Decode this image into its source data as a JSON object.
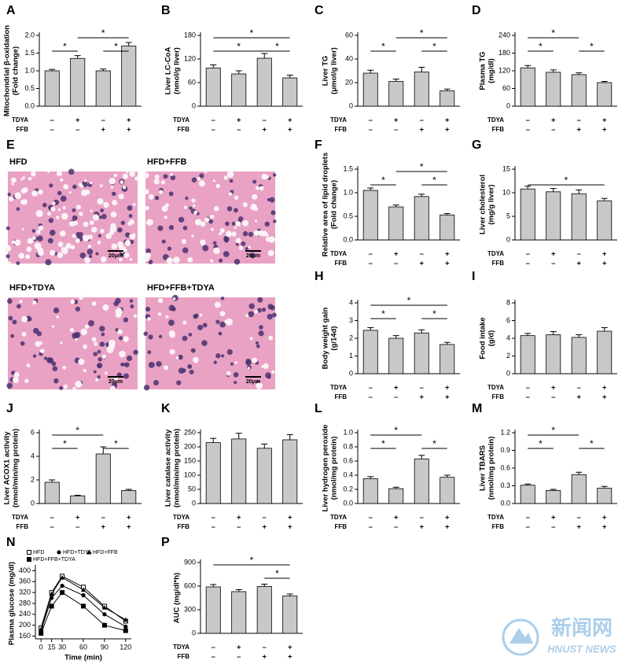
{
  "chart_data": [
    {
      "type": "bar",
      "letter": "A",
      "ylabel": [
        "Mitochondrial β-oxidation",
        "(Fold change)"
      ],
      "categories": [
        null,
        null,
        null,
        null
      ],
      "values": [
        1.0,
        1.35,
        1.0,
        1.7
      ],
      "errors": [
        0.04,
        0.08,
        0.05,
        0.1
      ],
      "color": "#c8c8c8",
      "ylim": [
        0,
        2
      ],
      "yticks": [
        {
          "value": 0,
          "label": "0.0"
        },
        0.5,
        {
          "value": 1,
          "label": "1.0"
        },
        1.5,
        {
          "value": 2,
          "label": "2.0"
        }
      ],
      "rows": [
        {
          "name": "TDYA",
          "signs": [
            "–",
            "+",
            "–",
            "+"
          ]
        },
        {
          "name": "FFB",
          "signs": [
            "–",
            "–",
            "+",
            "+"
          ]
        }
      ],
      "significance": [
        {
          "from": 0,
          "to": 1,
          "label": "*"
        },
        {
          "from": 2,
          "to": 3,
          "label": "*"
        },
        {
          "from": 1,
          "to": 3,
          "label": "*"
        }
      ]
    },
    {
      "type": "bar",
      "letter": "B",
      "ylabel": [
        "Liver LC-CoA",
        "(nmol/g liver)"
      ],
      "categories": [
        null,
        null,
        null,
        null
      ],
      "values": [
        97,
        82,
        122,
        72
      ],
      "errors": [
        8,
        8,
        12,
        7
      ],
      "color": "#c8c8c8",
      "ylim": [
        0,
        180
      ],
      "yticks": [
        0,
        60,
        120,
        180
      ],
      "rows": [
        {
          "name": "TDYA",
          "signs": [
            "–",
            "+",
            "–",
            "+"
          ]
        },
        {
          "name": "FFB",
          "signs": [
            "–",
            "–",
            "+",
            "+"
          ]
        }
      ],
      "significance": [
        {
          "from": 0,
          "to": 2,
          "label": "*"
        },
        {
          "from": 2,
          "to": 3,
          "label": "*"
        },
        {
          "from": 0,
          "to": 3,
          "label": "*"
        }
      ]
    },
    {
      "type": "bar",
      "letter": "C",
      "ylabel": [
        "Liver TG",
        "(μmol/g liver)"
      ],
      "categories": [
        null,
        null,
        null,
        null
      ],
      "values": [
        28,
        21,
        29,
        13
      ],
      "errors": [
        2.5,
        2,
        4,
        1.5
      ],
      "color": "#c8c8c8",
      "ylim": [
        0,
        60
      ],
      "yticks": [
        0,
        20,
        40,
        60
      ],
      "rows": [
        {
          "name": "TDYA",
          "signs": [
            "–",
            "+",
            "–",
            "+"
          ]
        },
        {
          "name": "FFB",
          "signs": [
            "–",
            "–",
            "+",
            "+"
          ]
        }
      ],
      "significance": [
        {
          "from": 0,
          "to": 1,
          "label": "*"
        },
        {
          "from": 2,
          "to": 3,
          "label": "*"
        },
        {
          "from": 1,
          "to": 3,
          "label": "*"
        }
      ]
    },
    {
      "type": "bar",
      "letter": "D",
      "ylabel": [
        "Plasma TG",
        "(mg/dl)"
      ],
      "categories": [
        null,
        null,
        null,
        null
      ],
      "values": [
        130,
        115,
        107,
        80
      ],
      "errors": [
        8,
        8,
        6,
        4
      ],
      "color": "#c8c8c8",
      "ylim": [
        0,
        240
      ],
      "yticks": [
        0,
        60,
        120,
        180,
        240
      ],
      "rows": [
        {
          "name": "TDYA",
          "signs": [
            "–",
            "+",
            "–",
            "+"
          ]
        },
        {
          "name": "FFB",
          "signs": [
            "–",
            "–",
            "+",
            "+"
          ]
        }
      ],
      "significance": [
        {
          "from": 0,
          "to": 1,
          "label": "*"
        },
        {
          "from": 2,
          "to": 3,
          "label": "*"
        },
        {
          "from": 0,
          "to": 2,
          "label": "*"
        }
      ]
    },
    {
      "type": "bar",
      "letter": "F",
      "ylabel": [
        "Relative area of lipid droplets",
        "(Fold change)"
      ],
      "categories": [
        null,
        null,
        null,
        null
      ],
      "values": [
        1.05,
        0.7,
        0.92,
        0.53
      ],
      "errors": [
        0.05,
        0.04,
        0.05,
        0.03
      ],
      "color": "#c8c8c8",
      "ylim": [
        0,
        1.5
      ],
      "yticks": [
        {
          "value": 0,
          "label": "0.0"
        },
        0.5,
        {
          "value": 1,
          "label": "1.0"
        },
        1.5
      ],
      "rows": [
        {
          "name": "TDYA",
          "signs": [
            "–",
            "+",
            "–",
            "+"
          ]
        },
        {
          "name": "FFB",
          "signs": [
            "–",
            "–",
            "+",
            "+"
          ]
        }
      ],
      "significance": [
        {
          "from": 0,
          "to": 1,
          "label": "*"
        },
        {
          "from": 2,
          "to": 3,
          "label": "*"
        },
        {
          "from": 1,
          "to": 3,
          "label": "*"
        }
      ]
    },
    {
      "type": "bar",
      "letter": "G",
      "ylabel": [
        "Liver cholesterol",
        "(mg/g liver)"
      ],
      "categories": [
        null,
        null,
        null,
        null
      ],
      "values": [
        10.8,
        10.2,
        9.8,
        8.3
      ],
      "errors": [
        0.6,
        0.7,
        0.8,
        0.5
      ],
      "color": "#c8c8c8",
      "ylim": [
        0,
        15
      ],
      "yticks": [
        0,
        5,
        10,
        15
      ],
      "rows": [
        {
          "name": "TDYA",
          "signs": [
            "–",
            "+",
            "–",
            "+"
          ]
        },
        {
          "name": "FFB",
          "signs": [
            "–",
            "–",
            "+",
            "+"
          ]
        }
      ],
      "significance": [
        {
          "from": 0,
          "to": 3,
          "label": "*"
        }
      ]
    },
    {
      "type": "bar",
      "letter": "H",
      "ylabel": [
        "Body weight gain",
        "(g/14d)"
      ],
      "categories": [
        null,
        null,
        null,
        null
      ],
      "values": [
        2.45,
        2.0,
        2.3,
        1.65
      ],
      "errors": [
        0.15,
        0.15,
        0.18,
        0.12
      ],
      "color": "#c8c8c8",
      "ylim": [
        0,
        4
      ],
      "yticks": [
        0,
        1,
        2,
        3,
        4
      ],
      "rows": [
        {
          "name": "TDYA",
          "signs": [
            "–",
            "+",
            "–",
            "+"
          ]
        },
        {
          "name": "FFB",
          "signs": [
            "–",
            "–",
            "+",
            "+"
          ]
        }
      ],
      "significance": [
        {
          "from": 0,
          "to": 1,
          "label": "*"
        },
        {
          "from": 2,
          "to": 3,
          "label": "*"
        },
        {
          "from": 0,
          "to": 3,
          "label": "*"
        }
      ]
    },
    {
      "type": "bar",
      "letter": "I",
      "ylabel": [
        "Food intake",
        "(g/d)"
      ],
      "categories": [
        null,
        null,
        null,
        null
      ],
      "values": [
        4.3,
        4.4,
        4.1,
        4.8
      ],
      "errors": [
        0.25,
        0.35,
        0.3,
        0.4
      ],
      "color": "#c8c8c8",
      "ylim": [
        0,
        8
      ],
      "yticks": [
        0,
        2,
        4,
        6,
        8
      ],
      "rows": [
        {
          "name": "TDYA",
          "signs": [
            "–",
            "+",
            "–",
            "+"
          ]
        },
        {
          "name": "FFB",
          "signs": [
            "–",
            "–",
            "+",
            "+"
          ]
        }
      ],
      "significance": []
    },
    {
      "type": "bar",
      "letter": "J",
      "ylabel": [
        "Liver ACOX1 activity",
        "(nmol/min/mg protein)"
      ],
      "categories": [
        null,
        null,
        null,
        null
      ],
      "values": [
        1.8,
        0.65,
        4.2,
        1.1
      ],
      "errors": [
        0.2,
        0.05,
        0.6,
        0.1
      ],
      "color": "#c8c8c8",
      "ylim": [
        0,
        6
      ],
      "yticks": [
        0,
        2,
        4,
        6
      ],
      "rows": [
        {
          "name": "TDYA",
          "signs": [
            "–",
            "+",
            "–",
            "+"
          ]
        },
        {
          "name": "FFB",
          "signs": [
            "–",
            "–",
            "+",
            "+"
          ]
        }
      ],
      "significance": [
        {
          "from": 0,
          "to": 1,
          "label": "*"
        },
        {
          "from": 2,
          "to": 3,
          "label": "*"
        },
        {
          "from": 0,
          "to": 2,
          "label": "*"
        }
      ]
    },
    {
      "type": "bar",
      "letter": "K",
      "ylabel": [
        "Liver catalase activity",
        "(nmol/min/mg protein)"
      ],
      "categories": [
        null,
        null,
        null,
        null
      ],
      "values": [
        215,
        228,
        195,
        225
      ],
      "errors": [
        15,
        20,
        15,
        18
      ],
      "color": "#c8c8c8",
      "ylim": [
        0,
        250
      ],
      "yticks": [
        0,
        50,
        100,
        150,
        200,
        250
      ],
      "rows": [
        {
          "name": "TDYA",
          "signs": [
            "–",
            "+",
            "–",
            "+"
          ]
        },
        {
          "name": "FFB",
          "signs": [
            "–",
            "–",
            "+",
            "+"
          ]
        }
      ],
      "significance": []
    },
    {
      "type": "bar",
      "letter": "L",
      "ylabel": [
        "Liver hydrogen peroxide",
        "(nmol/mg protein)"
      ],
      "categories": [
        null,
        null,
        null,
        null
      ],
      "values": [
        0.35,
        0.21,
        0.63,
        0.37
      ],
      "errors": [
        0.03,
        0.02,
        0.05,
        0.03
      ],
      "color": "#c8c8c8",
      "ylim": [
        0,
        1
      ],
      "yticks": [
        {
          "value": 0,
          "label": "0.0"
        },
        0.2,
        0.4,
        0.6,
        0.8,
        {
          "value": 1,
          "label": "1.0"
        }
      ],
      "rows": [
        {
          "name": "TDYA",
          "signs": [
            "–",
            "+",
            "–",
            "+"
          ]
        },
        {
          "name": "FFB",
          "signs": [
            "–",
            "–",
            "+",
            "+"
          ]
        }
      ],
      "significance": [
        {
          "from": 0,
          "to": 1,
          "label": "*"
        },
        {
          "from": 2,
          "to": 3,
          "label": "*"
        },
        {
          "from": 0,
          "to": 2,
          "label": "*"
        }
      ]
    },
    {
      "type": "bar",
      "letter": "M",
      "ylabel": [
        "Liver TBARS",
        "(nmol/mg protein)"
      ],
      "categories": [
        null,
        null,
        null,
        null
      ],
      "values": [
        0.31,
        0.22,
        0.49,
        0.26
      ],
      "errors": [
        0.02,
        0.02,
        0.04,
        0.03
      ],
      "color": "#c8c8c8",
      "ylim": [
        0,
        1.2
      ],
      "yticks": [
        {
          "value": 0,
          "label": "0.0"
        },
        0.3,
        0.6,
        0.9,
        1.2
      ],
      "rows": [
        {
          "name": "TDYA",
          "signs": [
            "–",
            "+",
            "–",
            "+"
          ]
        },
        {
          "name": "FFB",
          "signs": [
            "–",
            "–",
            "+",
            "+"
          ]
        }
      ],
      "significance": [
        {
          "from": 0,
          "to": 1,
          "label": "*"
        },
        {
          "from": 2,
          "to": 3,
          "label": "*"
        },
        {
          "from": 0,
          "to": 2,
          "label": "*"
        }
      ]
    },
    {
      "type": "line",
      "letter": "N",
      "ylabel": [
        "Plasma glucose (mg/dl)"
      ],
      "xlabel": "Time (min)",
      "x": [
        0,
        15,
        30,
        60,
        90,
        120
      ],
      "xlim": [
        -8,
        128
      ],
      "xticks": [
        0,
        15,
        30,
        60,
        90,
        120
      ],
      "ylim": [
        150,
        410
      ],
      "yticks": [
        160,
        200,
        240,
        280,
        320,
        360,
        400
      ],
      "series": [
        {
          "name": "HFD",
          "marker": "square-open",
          "color": "#000000",
          "values": [
            190,
            320,
            380,
            340,
            270,
            215
          ]
        },
        {
          "name": "HFD+TDYA",
          "marker": "circle",
          "color": "#000000",
          "values": [
            180,
            300,
            345,
            310,
            240,
            195
          ]
        },
        {
          "name": "HFD+FFB",
          "marker": "triangle",
          "color": "#000000",
          "values": [
            185,
            315,
            375,
            330,
            265,
            220
          ]
        },
        {
          "name": "HFD+FFB+TDYA",
          "marker": "square",
          "color": "#000000",
          "values": [
            170,
            270,
            320,
            270,
            200,
            180
          ]
        }
      ]
    },
    {
      "type": "bar",
      "letter": "P",
      "ylabel": [
        "AUC (mg/dl*h)"
      ],
      "categories": [
        null,
        null,
        null,
        null
      ],
      "values": [
        590,
        530,
        595,
        475
      ],
      "errors": [
        30,
        25,
        30,
        25
      ],
      "color": "#c8c8c8",
      "ylim": [
        0,
        900
      ],
      "yticks": [
        0,
        300,
        600,
        900
      ],
      "rows": [
        {
          "name": "TDYA",
          "signs": [
            "–",
            "+",
            "–",
            "+"
          ]
        },
        {
          "name": "FFB",
          "signs": [
            "–",
            "–",
            "+",
            "+"
          ]
        }
      ],
      "significance": [
        {
          "from": 2,
          "to": 3,
          "label": "*"
        },
        {
          "from": 0,
          "to": 3,
          "label": "*"
        }
      ]
    }
  ],
  "panel_e": {
    "letter": "E",
    "images": [
      {
        "label": "HFD",
        "scale": "20μm"
      },
      {
        "label": "HFD+FFB",
        "scale": "20μm"
      },
      {
        "label": "HFD+TDYA",
        "scale": "20μm"
      },
      {
        "label": "HFD+FFB+TDYA",
        "scale": "20μm"
      }
    ]
  },
  "watermark": {
    "title": "新闻网",
    "subtitle": "HNUST NEWS"
  }
}
